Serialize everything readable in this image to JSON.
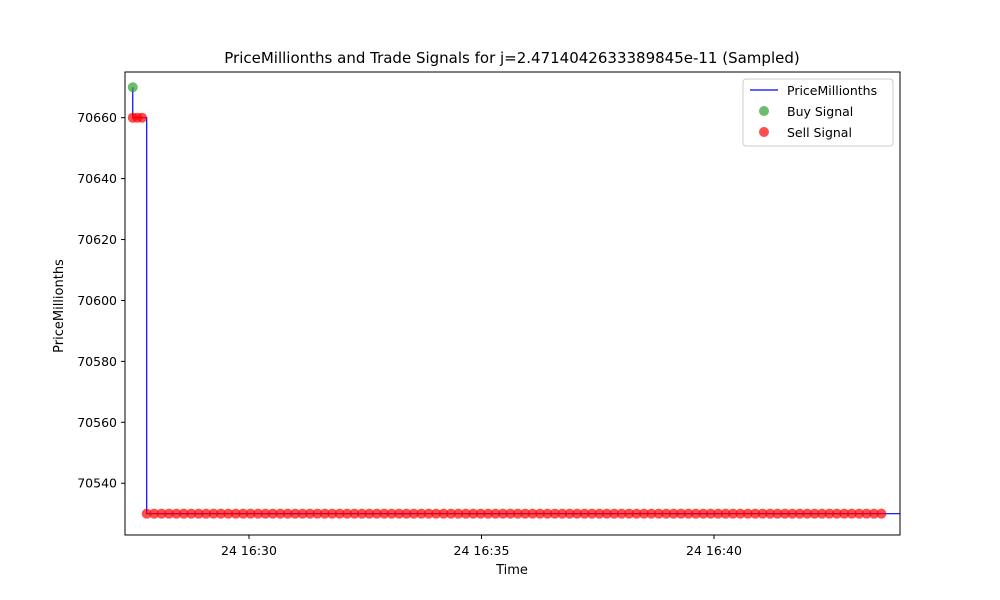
{
  "chart_data": {
    "type": "line",
    "title": "PriceMillionths and Trade Signals for j=2.4714042633389845e-11 (Sampled)",
    "xlabel": "Time",
    "ylabel": "PriceMillionths",
    "x_range": [
      "16:27:20",
      "16:44:00"
    ],
    "ylim": [
      70523,
      70675
    ],
    "x_ticks": [
      {
        "time": "16:30:00",
        "label": "24 16:30"
      },
      {
        "time": "16:35:00",
        "label": "24 16:35"
      },
      {
        "time": "16:40:00",
        "label": "24 16:40"
      }
    ],
    "y_ticks": [
      70540,
      70560,
      70580,
      70600,
      70620,
      70640,
      70660
    ],
    "grid": false,
    "legend_position": "top-right",
    "colors": {
      "price_line": "#0000ff",
      "buy": "#2ca02c",
      "sell": "#ff0000"
    },
    "series": [
      {
        "name": "PriceMillionths",
        "kind": "line",
        "x": [
          "16:27:30",
          "16:27:30",
          "16:27:36",
          "16:27:42",
          "16:27:48",
          "16:27:48",
          "16:44:00"
        ],
        "y": [
          70670,
          70660,
          70660,
          70660,
          70660,
          70530,
          70530
        ]
      },
      {
        "name": "Buy Signal",
        "kind": "scatter",
        "x": [
          "16:27:30"
        ],
        "y": [
          70670
        ]
      },
      {
        "name": "Sell Signal",
        "kind": "scatter",
        "points": [
          {
            "x": "16:27:30",
            "y": 70660
          },
          {
            "x": "16:27:36",
            "y": 70660
          },
          {
            "x": "16:27:42",
            "y": 70660
          }
        ],
        "run": {
          "start": "16:27:48",
          "end": "16:43:36",
          "count": 100,
          "y": 70530
        }
      }
    ]
  }
}
